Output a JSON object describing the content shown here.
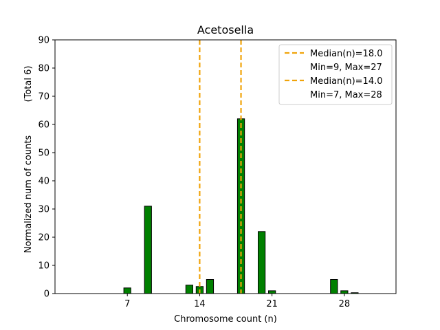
{
  "chart_data": {
    "type": "bar",
    "title": "Acetosella",
    "xlabel": "Chromosome count (n)",
    "ylabel": "Normalized num of counts",
    "ylabel_secondary": "(Total 6)",
    "xlim": [
      0,
      33
    ],
    "ylim": [
      0,
      90
    ],
    "xticks": [
      7,
      14,
      21,
      28
    ],
    "yticks": [
      0,
      10,
      20,
      30,
      40,
      50,
      60,
      70,
      80,
      90
    ],
    "bar_color": "#008000",
    "bar_edge_color": "#000000",
    "bars": [
      {
        "x": 7,
        "value": 2
      },
      {
        "x": 9,
        "value": 31
      },
      {
        "x": 13,
        "value": 3
      },
      {
        "x": 14,
        "value": 2.5
      },
      {
        "x": 15,
        "value": 5
      },
      {
        "x": 18,
        "value": 62
      },
      {
        "x": 20,
        "value": 22
      },
      {
        "x": 21,
        "value": 1
      },
      {
        "x": 27,
        "value": 5
      },
      {
        "x": 28,
        "value": 1
      },
      {
        "x": 29,
        "value": 0.3
      }
    ],
    "medians": [
      {
        "x": 18.0,
        "color": "#f0a30a",
        "label": "Median(n)=18.0",
        "range_label": "Min=9, Max=27"
      },
      {
        "x": 14.0,
        "color": "#f0a30a",
        "label": "Median(n)=14.0",
        "range_label": "Min=7, Max=28"
      }
    ],
    "legend_position": "top-right"
  }
}
